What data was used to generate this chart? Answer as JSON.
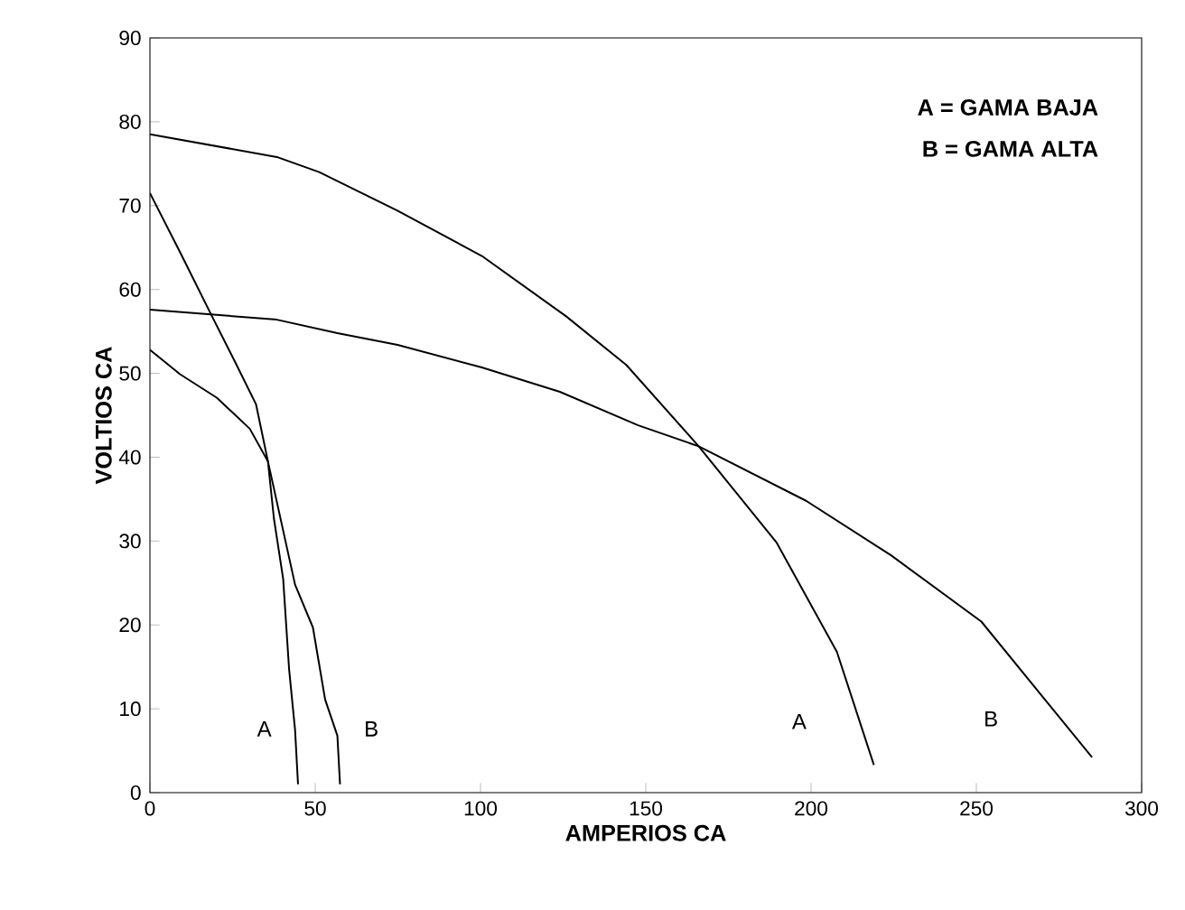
{
  "chart_data": {
    "type": "line",
    "xlabel": "AMPERIOS CA",
    "ylabel": "VOLTIOS CA",
    "xlim": [
      0,
      300
    ],
    "ylim": [
      0,
      90
    ],
    "xticks": [
      0,
      50,
      100,
      150,
      200,
      250,
      300
    ],
    "yticks": [
      0,
      10,
      20,
      30,
      40,
      50,
      60,
      70,
      80,
      90
    ],
    "grid": false,
    "legend": false,
    "marker": "none",
    "line_style": "solid",
    "series": [
      {
        "name": "A",
        "color": "#000000",
        "x": [
          0,
          9.1,
          20.2,
          30.2,
          35.7,
          37.5,
          40.3,
          42.1,
          43.9,
          44.8
        ],
        "values": [
          52.8,
          49.9,
          47.1,
          43.4,
          39.5,
          32.7,
          25.5,
          14.7,
          7.5,
          1
        ]
      },
      {
        "name": "B",
        "color": "#000000",
        "x": [
          0,
          9.3,
          18.4,
          25.7,
          32.1,
          35.7,
          43.9,
          49.3,
          53,
          56.7,
          57.5
        ],
        "values": [
          71.5,
          64.3,
          57.1,
          51.4,
          46.3,
          39.5,
          24.8,
          19.7,
          11.1,
          6.8,
          1
        ]
      },
      {
        "name": "A",
        "color": "#000000",
        "x": [
          0,
          38.4,
          51.2,
          74.9,
          100.4,
          125.9,
          144.1,
          166,
          189.6,
          207.8,
          219
        ],
        "values": [
          78.5,
          75.8,
          74,
          69.4,
          64,
          56.8,
          51,
          41.3,
          29.8,
          16.8,
          3.3
        ]
      },
      {
        "name": "B",
        "color": "#000000",
        "x": [
          0,
          38.4,
          56.7,
          74.9,
          100.4,
          124,
          147.7,
          166,
          198.5,
          224.2,
          251.5,
          285
        ],
        "values": [
          57.6,
          56.4,
          54.8,
          53.4,
          50.7,
          47.8,
          43.8,
          41.3,
          34.8,
          28.3,
          20.4,
          4.2
        ]
      }
    ],
    "annotations": [
      "A = GAMA BAJA",
      "B = GAMA ALTA"
    ]
  }
}
